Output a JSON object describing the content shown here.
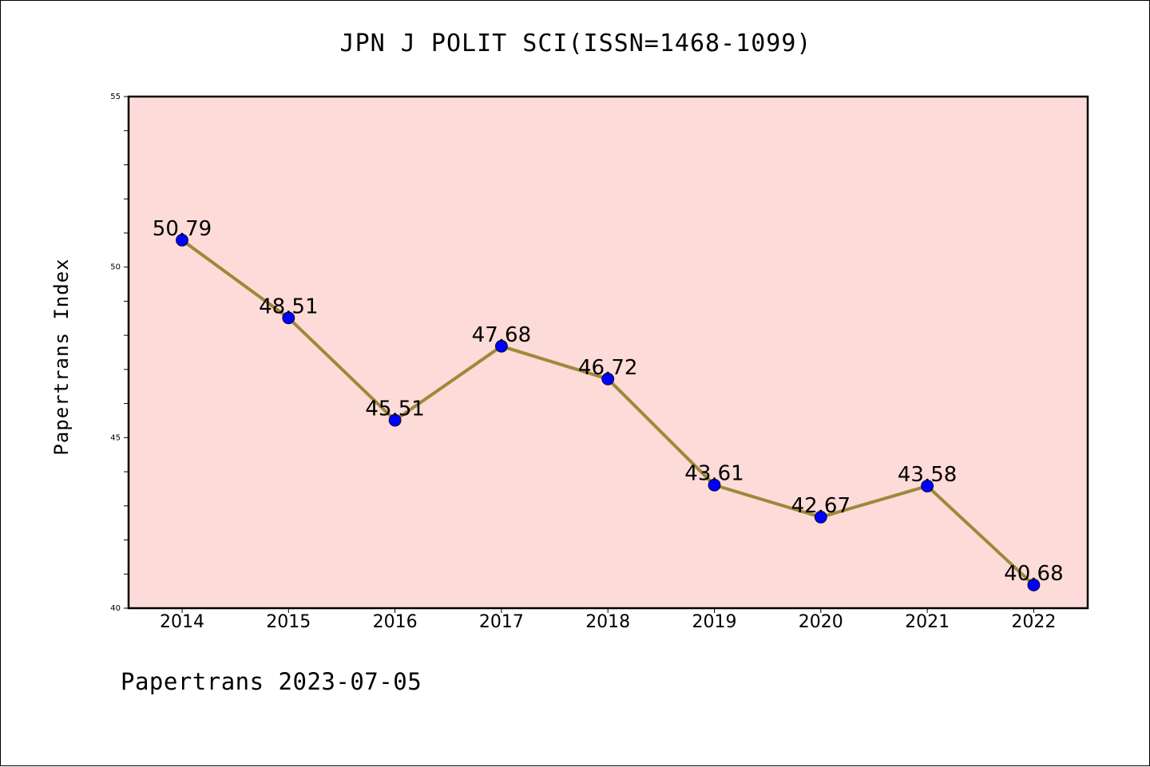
{
  "chart_data": {
    "type": "line",
    "title": "JPN J POLIT SCI(ISSN=1468-1099)",
    "xlabel": "",
    "ylabel": "Papertrans Index",
    "categories": [
      "2014",
      "2015",
      "2016",
      "2017",
      "2018",
      "2019",
      "2020",
      "2021",
      "2022"
    ],
    "series": [
      {
        "values": [
          50.79,
          48.51,
          45.51,
          47.68,
          46.72,
          43.61,
          42.67,
          43.58,
          40.68
        ],
        "labels": [
          "50.79",
          "48.51",
          "45.51",
          "47.68",
          "46.72",
          "43.61",
          "42.67",
          "43.58",
          "40.68"
        ],
        "line_color": "#9c8a3a",
        "marker_color": "#0000ff"
      }
    ],
    "ylim": [
      40,
      55
    ],
    "yticks": [
      "40",
      "45",
      "50",
      "55"
    ],
    "plot_background": "#fddbd8",
    "grid": false,
    "legend": "none"
  },
  "footer": {
    "text": "Papertrans 2023-07-05"
  }
}
